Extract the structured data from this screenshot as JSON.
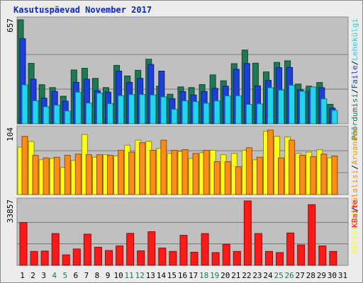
{
  "title": "Kasutuspäevad November 2017",
  "chart_data": [
    {
      "type": "bar",
      "name": "top",
      "max_label": "657",
      "categories": [
        "1",
        "2",
        "3",
        "4",
        "5",
        "6",
        "7",
        "8",
        "9",
        "10",
        "11",
        "12",
        "13",
        "14",
        "15",
        "16",
        "17",
        "18",
        "19",
        "20",
        "21",
        "22",
        "23",
        "24",
        "25",
        "26",
        "27",
        "28",
        "29",
        "30",
        "31"
      ],
      "weekend_days": [
        "4",
        "5",
        "11",
        "12",
        "18",
        "19",
        "25",
        "26"
      ],
      "ylim": [
        0,
        657
      ],
      "right_labels": [
        "Pöördumisi",
        "Faile",
        "Lehekülgi"
      ],
      "series": [
        {
          "name": "Pöördumisi",
          "color": "#1f7a54",
          "values": [
            657,
            382,
            247,
            229,
            174,
            340,
            351,
            287,
            229,
            369,
            302,
            338,
            408,
            238,
            187,
            233,
            229,
            248,
            309,
            272,
            380,
            466,
            383,
            328,
            388,
            398,
            251,
            238,
            261,
            123,
            0
          ]
        },
        {
          "name": "Faile",
          "color": "#1c3fd6",
          "values": [
            538,
            282,
            162,
            204,
            143,
            262,
            282,
            209,
            200,
            333,
            262,
            287,
            375,
            333,
            159,
            204,
            182,
            204,
            224,
            238,
            344,
            381,
            240,
            275,
            355,
            356,
            215,
            206,
            228,
            99,
            0
          ]
        },
        {
          "name": "Lehekülgi",
          "color": "#22d5ee",
          "values": [
            246,
            146,
            108,
            118,
            81,
            200,
            131,
            194,
            128,
            178,
            185,
            185,
            182,
            170,
            92,
            145,
            140,
            130,
            145,
            176,
            177,
            123,
            126,
            228,
            213,
            244,
            206,
            233,
            158,
            85,
            0
          ]
        }
      ]
    },
    {
      "type": "bar",
      "name": "middle",
      "max_label": "104",
      "categories": [
        "1",
        "2",
        "3",
        "4",
        "5",
        "6",
        "7",
        "8",
        "9",
        "10",
        "11",
        "12",
        "13",
        "14",
        "15",
        "16",
        "17",
        "18",
        "19",
        "20",
        "21",
        "22",
        "23",
        "24",
        "25",
        "26",
        "27",
        "28",
        "29",
        "30",
        "31"
      ],
      "ylim": [
        0,
        104
      ],
      "right_labels": [
        "Külastusi",
        "Külalisi",
        "Aruanded"
      ],
      "series": [
        {
          "name": "Külastusi",
          "color": "#ffff1a",
          "values": [
            75,
            84,
            55,
            57,
            43,
            54,
            95,
            59,
            63,
            61,
            78,
            86,
            84,
            73,
            65,
            68,
            57,
            66,
            70,
            63,
            65,
            70,
            55,
            100,
            92,
            91,
            65,
            67,
            71,
            58,
            0
          ]
        },
        {
          "name": "Külalisi",
          "color": "#ff8c1a",
          "values": [
            92,
            62,
            58,
            59,
            62,
            64,
            63,
            63,
            62,
            70,
            67,
            82,
            70,
            86,
            70,
            71,
            65,
            70,
            52,
            52,
            44,
            74,
            59,
            102,
            58,
            86,
            62,
            60,
            64,
            61,
            0
          ]
        }
      ]
    },
    {
      "type": "bar",
      "name": "bottom",
      "max_label": "33857",
      "categories": [
        "1",
        "2",
        "3",
        "4",
        "5",
        "6",
        "7",
        "8",
        "9",
        "10",
        "11",
        "12",
        "13",
        "14",
        "15",
        "16",
        "17",
        "18",
        "19",
        "20",
        "21",
        "22",
        "23",
        "24",
        "25",
        "26",
        "27",
        "28",
        "29",
        "30",
        "31"
      ],
      "ylim": [
        0,
        33857
      ],
      "right_labels": [
        "KBaite"
      ],
      "series": [
        {
          "name": "KBaite",
          "color": "#ff1a1a",
          "values": [
            22500,
            7300,
            7500,
            16700,
            5500,
            8600,
            16400,
            9500,
            7800,
            10200,
            16800,
            7600,
            17700,
            9100,
            7300,
            15800,
            6900,
            16700,
            6700,
            11000,
            7300,
            33857,
            16700,
            7300,
            6700,
            17000,
            10700,
            31900,
            10200,
            7300,
            0
          ]
        }
      ]
    }
  ]
}
